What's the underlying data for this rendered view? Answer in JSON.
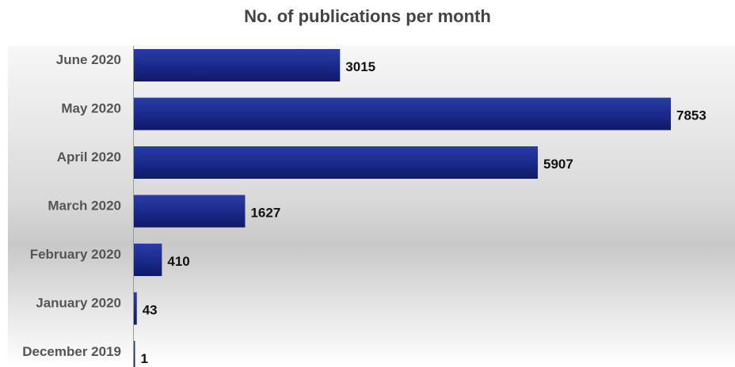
{
  "chart_data": {
    "type": "bar",
    "orientation": "horizontal",
    "title": "No. of publications per month",
    "categories": [
      "June 2020",
      "May 2020",
      "April 2020",
      "March 2020",
      "February 2020",
      "January 2020",
      "December 2019"
    ],
    "values": [
      3015,
      7853,
      5907,
      1627,
      410,
      43,
      1
    ],
    "xlim": [
      0,
      7853
    ],
    "bar_color": "#1b2a8c",
    "grid": false,
    "legend": "none"
  }
}
